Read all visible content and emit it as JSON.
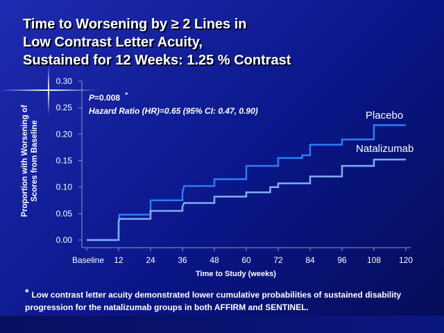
{
  "slide": {
    "title_lines": [
      "Time to Worsening by ≥ 2 Lines in",
      "Low Contrast Letter Acuity,",
      "Sustained for 12 Weeks:  1.25 % Contrast"
    ],
    "footnote_marker": "*",
    "footnote": "Low contrast letter acuity demonstrated lower cumulative probabilities of sustained disability progression for the natalizumab groups in both AFFIRM and SENTINEL."
  },
  "chart_data": {
    "type": "line",
    "step": true,
    "xlabel": "Time to Study (weeks)",
    "ylabel_lines": [
      "Proportion with Worsening of",
      "Scores from Baseline"
    ],
    "x_ticks": [
      0,
      12,
      24,
      36,
      48,
      60,
      72,
      84,
      96,
      108,
      120
    ],
    "x_tick_labels": [
      "Baseline",
      "12",
      "24",
      "36",
      "48",
      "60",
      "72",
      "84",
      "96",
      "108",
      "120"
    ],
    "y_ticks": [
      0,
      0.05,
      0.1,
      0.15,
      0.2,
      0.25,
      0.3
    ],
    "y_tick_labels": [
      "0.00",
      "0.05",
      "0.10",
      "0.15",
      "0.20",
      "0.25",
      "0.30"
    ],
    "xlim": [
      0,
      120
    ],
    "ylim": [
      0,
      0.3
    ],
    "grid": false,
    "annotation": {
      "p_label": "P",
      "p_value": "=0.008",
      "p_marker": "*",
      "hazard_ratio": "Hazard Ratio (HR)=0.65 (95% CI: 0.47, 0.90)"
    },
    "series": [
      {
        "name": "Placebo",
        "color": "#2f7cf6",
        "points": [
          [
            0,
            0
          ],
          [
            12,
            0
          ],
          [
            12,
            0.03
          ],
          [
            12.3,
            0.048
          ],
          [
            24,
            0.048
          ],
          [
            24,
            0.075
          ],
          [
            36,
            0.075
          ],
          [
            36,
            0.09
          ],
          [
            36.6,
            0.102
          ],
          [
            48,
            0.102
          ],
          [
            48,
            0.115
          ],
          [
            60,
            0.115
          ],
          [
            60,
            0.14
          ],
          [
            72,
            0.14
          ],
          [
            72,
            0.155
          ],
          [
            81,
            0.155
          ],
          [
            81,
            0.16
          ],
          [
            84,
            0.16
          ],
          [
            84,
            0.18
          ],
          [
            96,
            0.18
          ],
          [
            96,
            0.19
          ],
          [
            108,
            0.19
          ],
          [
            108,
            0.217
          ],
          [
            120,
            0.217
          ]
        ]
      },
      {
        "name": "Natalizumab",
        "color": "#7fb0f2",
        "points": [
          [
            0,
            0
          ],
          [
            12,
            0
          ],
          [
            12,
            0.035
          ],
          [
            12.3,
            0.04
          ],
          [
            24,
            0.04
          ],
          [
            24,
            0.055
          ],
          [
            36,
            0.055
          ],
          [
            36,
            0.063
          ],
          [
            36.6,
            0.07
          ],
          [
            48,
            0.07
          ],
          [
            48,
            0.082
          ],
          [
            60,
            0.082
          ],
          [
            60,
            0.09
          ],
          [
            69,
            0.09
          ],
          [
            69,
            0.1
          ],
          [
            72,
            0.1
          ],
          [
            72,
            0.107
          ],
          [
            84,
            0.107
          ],
          [
            84,
            0.12
          ],
          [
            96,
            0.12
          ],
          [
            96,
            0.14
          ],
          [
            108,
            0.14
          ],
          [
            108,
            0.152
          ],
          [
            120,
            0.152
          ]
        ]
      }
    ]
  }
}
